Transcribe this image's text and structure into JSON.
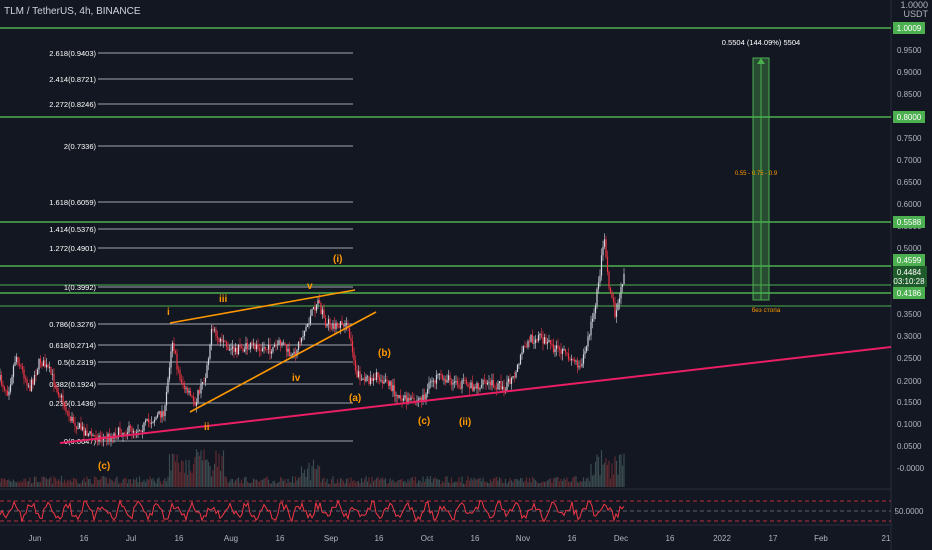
{
  "header": {
    "title": "TLM / TetherUS, 4h, BINANCE",
    "currency_unit": "USDT",
    "currency_top": "1.0000"
  },
  "price_axis": {
    "ticks": [
      "0.9500",
      "0.9000",
      "0.8500",
      "0.7500",
      "0.7000",
      "0.6500",
      "0.6000",
      "0.5500",
      "0.5000",
      "0.3500",
      "0.3000",
      "0.2500",
      "0.2000",
      "0.1500",
      "0.1000",
      "0.0500",
      "-0.0000"
    ]
  },
  "price_levels": {
    "level_1": "1.0009",
    "level_2": "0.8000",
    "level_3": "0.5588",
    "level_4": "0.4599",
    "current_price": "0.4484",
    "countdown": "03:10:28",
    "level_5": "0.4186"
  },
  "oscillator": {
    "level_label": "50.0000"
  },
  "time_axis": {
    "labels": [
      "Jun",
      "16",
      "Jul",
      "16",
      "Aug",
      "16",
      "Sep",
      "16",
      "Oct",
      "16",
      "Nov",
      "16",
      "Dec",
      "16",
      "2022",
      "17",
      "Feb",
      "21"
    ]
  },
  "fib_levels": [
    {
      "label": "2.618(0.9403)"
    },
    {
      "label": "2.414(0.8721)"
    },
    {
      "label": "2.272(0.8246)"
    },
    {
      "label": "2(0.7336)"
    },
    {
      "label": "1.618(0.6059)"
    },
    {
      "label": "1.414(0.5376)"
    },
    {
      "label": "1.272(0.4901)"
    },
    {
      "label": "1(0.3992)"
    },
    {
      "label": "0.786(0.3276)"
    },
    {
      "label": "0.618(0.2714)"
    },
    {
      "label": "0.5(0.2319)"
    },
    {
      "label": "0.382(0.1924)"
    },
    {
      "label": "0.236(0.1436)"
    },
    {
      "label": "0(0.0647)"
    }
  ],
  "waves": {
    "c_start": "(c)",
    "i": "i",
    "ii": "ii",
    "iii": "iii",
    "iv": "iv",
    "v": "v",
    "wave_i": "(i)",
    "a": "(a)",
    "b": "(b)",
    "c": "(c)",
    "wave_ii": "(ii)"
  },
  "projection": {
    "header": "0.5504 (144.09%) 5504",
    "inner": "0.55 - 0.75 - 0.9",
    "footer": "без стопа"
  },
  "colors": {
    "background": "#131722",
    "green_line": "#4caf50",
    "up_candle": "#d1d4dc",
    "down_candle": "#f23645",
    "wave_label": "#ff9800",
    "wedge": "#ff9800",
    "trendline": "#e91e63",
    "volume": "#5d2a30",
    "oscillator": "#f23645",
    "fib_line": "#d1d4dc",
    "axis_text": "#b2b5be"
  }
}
